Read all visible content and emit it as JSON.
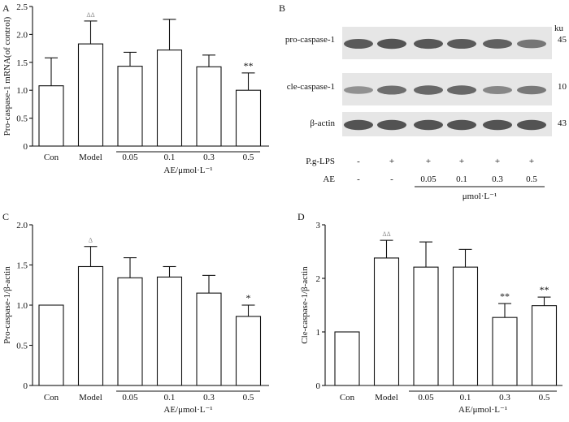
{
  "chart_data": [
    {
      "panel_label": "A",
      "type": "bar",
      "categories": [
        "Con",
        "Model",
        "0.05",
        "0.1",
        "0.3",
        "0.5"
      ],
      "values": [
        1.08,
        1.83,
        1.43,
        1.72,
        1.42,
        1.0
      ],
      "errors": [
        0.5,
        0.41,
        0.25,
        0.55,
        0.21,
        0.31
      ],
      "annotations": [
        "",
        "ΔΔ",
        "",
        "",
        "",
        "**"
      ],
      "ylabel": "Pro-caspase-1 mRNA(of control)",
      "ylim": [
        0,
        2.5
      ],
      "yticks": [
        "0",
        "0.5",
        "1.0",
        "1.5",
        "2.0",
        "2.5"
      ],
      "group_label": "AE/μmol·L⁻¹"
    },
    {
      "panel_label": "C",
      "type": "bar",
      "categories": [
        "Con",
        "Model",
        "0.05",
        "0.1",
        "0.3",
        "0.5"
      ],
      "values": [
        1.0,
        1.48,
        1.34,
        1.35,
        1.15,
        0.86
      ],
      "errors": [
        0,
        0.25,
        0.25,
        0.13,
        0.22,
        0.14
      ],
      "annotations": [
        "",
        "Δ",
        "",
        "",
        "",
        "*"
      ],
      "ylabel": "Pro-caspase-1/β-actin",
      "ylim": [
        0,
        2.0
      ],
      "yticks": [
        "0",
        "0.5",
        "1.0",
        "1.5",
        "2.0"
      ],
      "group_label": "AE/μmol·L⁻¹"
    },
    {
      "panel_label": "D",
      "type": "bar",
      "categories": [
        "Con",
        "Model",
        "0.05",
        "0.1",
        "0.3",
        "0.5"
      ],
      "values": [
        1.0,
        2.38,
        2.21,
        2.21,
        1.27,
        1.49
      ],
      "errors": [
        0,
        0.33,
        0.47,
        0.33,
        0.26,
        0.16
      ],
      "annotations": [
        "",
        "ΔΔ",
        "",
        "",
        "**",
        "**"
      ],
      "ylabel": "Cle-caspase-1/β-actin",
      "ylim": [
        0,
        3
      ],
      "yticks": [
        "0",
        "1",
        "2",
        "3"
      ],
      "group_label": "AE/μmol·L⁻¹"
    }
  ],
  "blot": {
    "panel_label": "B",
    "unit": "ku",
    "rows": [
      {
        "label": "pro-caspase-1",
        "kd": "45",
        "intensity": [
          0.95,
          1.0,
          0.97,
          0.95,
          0.9,
          0.75
        ]
      },
      {
        "label": "cle-caspase-1",
        "kd": "10",
        "intensity": [
          0.55,
          0.8,
          0.85,
          0.85,
          0.62,
          0.72
        ]
      },
      {
        "label": "β-actin",
        "kd": "43",
        "intensity": [
          1.0,
          1.0,
          1.0,
          1.0,
          1.0,
          1.0
        ]
      }
    ],
    "treatment_rows": [
      {
        "label": "P.g-LPS",
        "values": [
          "-",
          "+",
          "+",
          "+",
          "+",
          "+"
        ]
      },
      {
        "label": "AE",
        "values": [
          "-",
          "-",
          "0.05",
          "0.1",
          "0.3",
          "0.5"
        ]
      }
    ],
    "unit_label": "μmol·L⁻¹"
  }
}
